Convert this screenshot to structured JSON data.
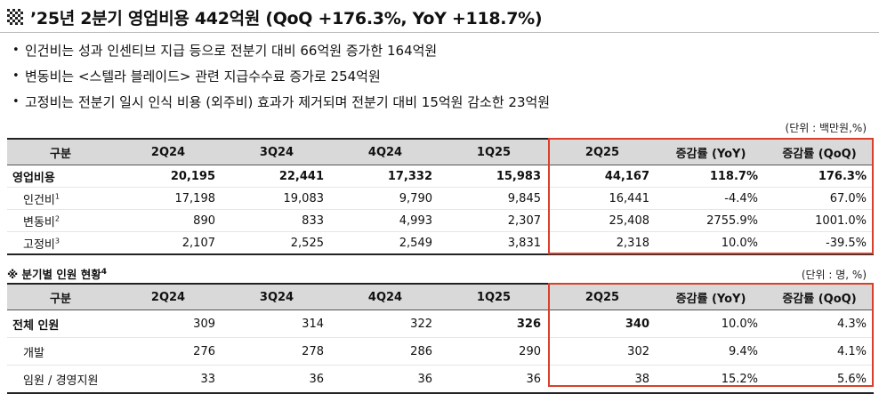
{
  "title": "’25년 2분기 영업비용 442억원 (QoQ +176.3%, YoY +118.7%)",
  "bullets": [
    "인건비는 성과 인센티브 지급 등으로 전분기 대비 66억원 증가한 164억원",
    "변동비는 <스텔라 블레이드> 관련 지급수수료 증가로 254억원",
    "고정비는 전분기 일시 인식 비용 (외주비) 효과가 제거되며 전분기 대비 15억원 감소한 23억원"
  ],
  "bullet_marker": "•",
  "table1": {
    "unit": "(단위 : 백만원,%)",
    "headers": [
      "구분",
      "2Q24",
      "3Q24",
      "4Q24",
      "1Q25",
      "2Q25",
      "증감률 (YoY)",
      "증감률 (QoQ)"
    ],
    "rows": [
      {
        "label": "영업비용",
        "sup": "",
        "cells": [
          "20,195",
          "22,441",
          "17,332",
          "15,983",
          "44,167",
          "118.7%",
          "176.3%"
        ]
      },
      {
        "label": "인건비",
        "sup": "1",
        "cells": [
          "17,198",
          "19,083",
          "9,790",
          "9,845",
          "16,441",
          "-4.4%",
          "67.0%"
        ]
      },
      {
        "label": "변동비",
        "sup": "2",
        "cells": [
          "890",
          "833",
          "4,993",
          "2,307",
          "25,408",
          "2755.9%",
          "1001.0%"
        ]
      },
      {
        "label": "고정비",
        "sup": "3",
        "cells": [
          "2,107",
          "2,525",
          "2,549",
          "3,831",
          "2,318",
          "10.0%",
          "-39.5%"
        ]
      }
    ]
  },
  "table2": {
    "subtitle": "※ 분기별 인원 현황",
    "subtitle_sup": "4",
    "unit": "(단위 : 명, %)",
    "headers": [
      "구분",
      "2Q24",
      "3Q24",
      "4Q24",
      "1Q25",
      "2Q25",
      "증감률 (YoY)",
      "증감률 (QoQ)"
    ],
    "rows": [
      {
        "label": "전체 인원",
        "cells": [
          "309",
          "314",
          "322",
          "326",
          "340",
          "10.0%",
          "4.3%"
        ]
      },
      {
        "label": "개발",
        "cells": [
          "276",
          "278",
          "286",
          "290",
          "302",
          "9.4%",
          "4.1%"
        ]
      },
      {
        "label": "임원 / 경영지원",
        "cells": [
          "33",
          "36",
          "36",
          "36",
          "38",
          "15.2%",
          "5.6%"
        ]
      }
    ]
  },
  "colors": {
    "highlight": "#d9402b",
    "header_bg": "#d9d9d9"
  },
  "icons": {
    "title": "checkerboard-icon"
  }
}
